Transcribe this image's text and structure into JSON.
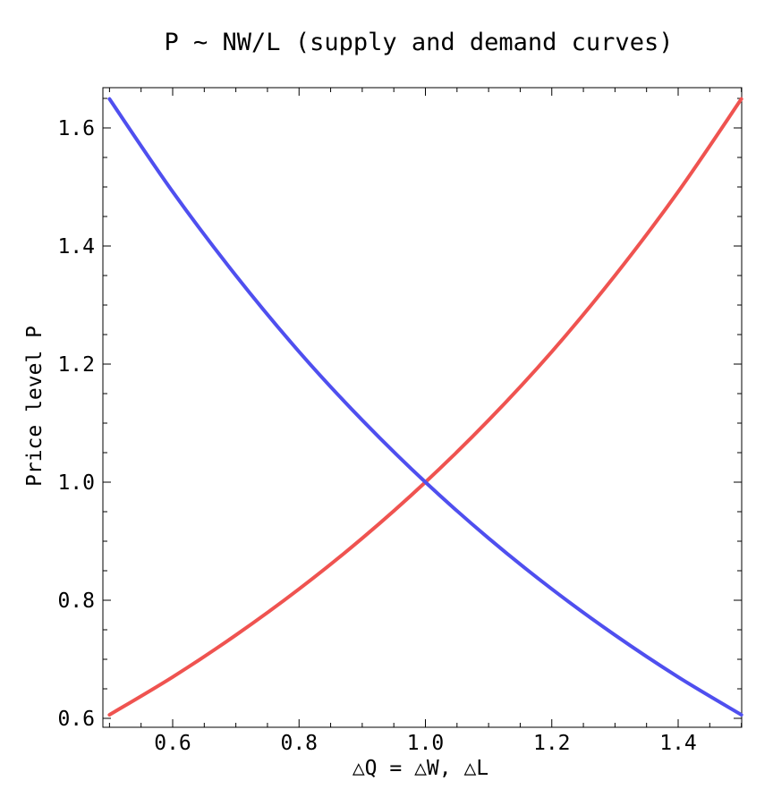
{
  "chart_data": {
    "type": "line",
    "title": "P ~ NW/L (supply and demand curves)",
    "xlabel": "△Q = △W, △L",
    "ylabel": "Price level P",
    "xlim": [
      0.5,
      1.5
    ],
    "ylim": [
      0.6,
      1.65
    ],
    "x_ticks": [
      0.6,
      0.8,
      1.0,
      1.2,
      1.4
    ],
    "x_tick_labels": [
      "0.6",
      "0.8",
      "1.0",
      "1.2",
      "1.4"
    ],
    "y_ticks": [
      0.6,
      0.8,
      1.0,
      1.2,
      1.4,
      1.6
    ],
    "y_tick_labels": [
      "0.6",
      "0.8",
      "1.0",
      "1.2",
      "1.4",
      "1.6"
    ],
    "grid": false,
    "legend": "none",
    "series": [
      {
        "color": "#ef5350",
        "x": [
          0.5,
          0.6,
          0.7,
          0.8,
          0.9,
          1.0,
          1.1,
          1.2,
          1.3,
          1.4,
          1.5
        ],
        "values": [
          0.606,
          0.67,
          0.741,
          0.819,
          0.905,
          1.0,
          1.105,
          1.221,
          1.35,
          1.492,
          1.649
        ]
      },
      {
        "color": "#4f4fef",
        "x": [
          0.5,
          0.6,
          0.7,
          0.8,
          0.9,
          1.0,
          1.1,
          1.2,
          1.3,
          1.4,
          1.5
        ],
        "values": [
          1.649,
          1.492,
          1.35,
          1.221,
          1.105,
          1.0,
          0.905,
          0.819,
          0.741,
          0.67,
          0.606
        ]
      }
    ]
  }
}
